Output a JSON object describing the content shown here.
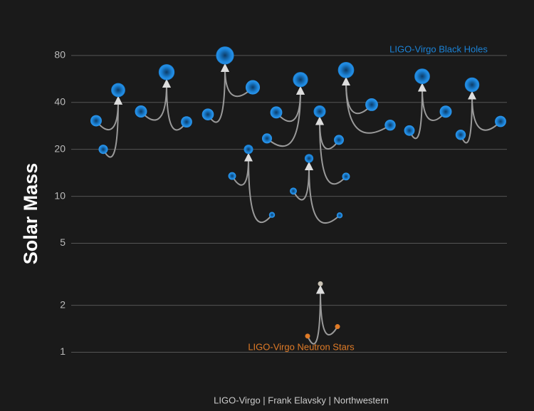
{
  "chart_data": {
    "type": "merger",
    "y_label": "Solar Mass",
    "credit": "LIGO-Virgo | Frank Elavsky | Northwestern",
    "log_y": true,
    "grid": true,
    "ylim": [
      0.85,
      105
    ],
    "yticks": [
      1,
      2,
      5,
      10,
      20,
      40,
      80
    ],
    "groups": [
      {
        "name": "LIGO-Virgo Black Holes",
        "color": "#1b82d6",
        "final_color": "#1b82d6",
        "mergers": [
          {
            "m1": 30.5,
            "m2": 20,
            "final": 48
          },
          {
            "m1": 35,
            "m2": 30,
            "final": 62.5
          },
          {
            "m1": 33.5,
            "m2": 50,
            "final": 80
          },
          {
            "m1": 13.5,
            "m2": 7.6,
            "final": 20
          },
          {
            "m1": 23.5,
            "m2": 34.5,
            "final": 56
          },
          {
            "m1": 10.8,
            "m2": 7.55,
            "final": 17.5
          },
          {
            "m1": 23,
            "m2": 13.4,
            "final": 35
          },
          {
            "m1": 38.7,
            "m2": 28.6,
            "final": 64.5
          },
          {
            "m1": 26.4,
            "m2": 34.9,
            "final": 58.8
          },
          {
            "m1": 24.8,
            "m2": 30.2,
            "final": 51.9
          }
        ]
      },
      {
        "name": "LIGO-Virgo Neutron Stars",
        "color": "#e07b27",
        "final_color": "#c9c2b4",
        "mergers": [
          {
            "m1": 1.27,
            "m2": 1.46,
            "final": 2.75
          }
        ]
      }
    ]
  }
}
